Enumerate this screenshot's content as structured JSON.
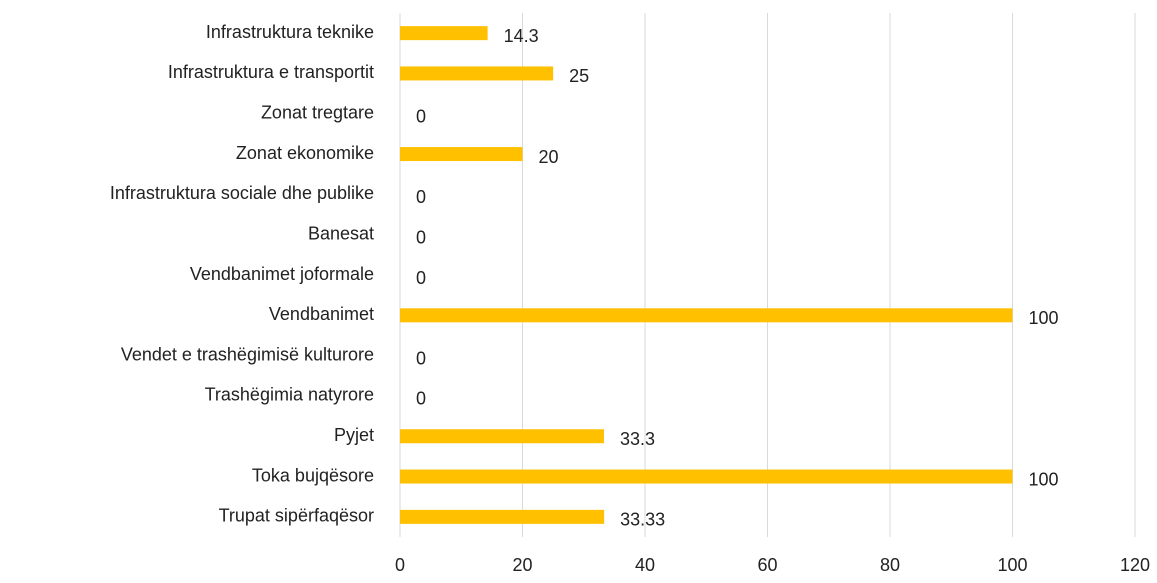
{
  "chart_data": {
    "type": "bar",
    "orientation": "horizontal",
    "categories": [
      "Infrastruktura teknike",
      "Infrastruktura e transportit",
      "Zonat tregtare",
      "Zonat ekonomike",
      "Infrastruktura sociale dhe publike",
      "Banesat",
      "Vendbanimet joformale",
      "Vendbanimet",
      "Vendet e trashëgimisë kulturore",
      "Trashëgimia natyrore",
      "Pyjet",
      "Toka bujqësore",
      "Trupat sipërfaqësor"
    ],
    "values": [
      14.3,
      25,
      0,
      20,
      0,
      0,
      0,
      100,
      0,
      0,
      33.3,
      100,
      33.33
    ],
    "color": "#ffc000",
    "xlim": [
      0,
      120
    ],
    "xticks": [
      0,
      20,
      40,
      60,
      80,
      100,
      120
    ],
    "grid": true
  }
}
